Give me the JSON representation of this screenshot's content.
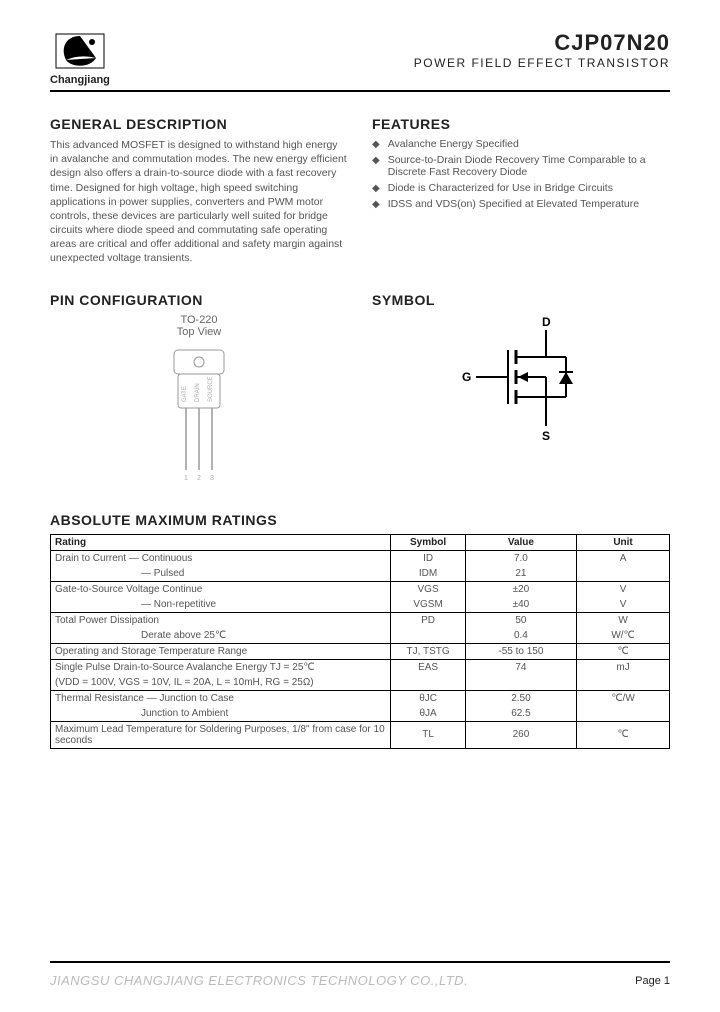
{
  "header": {
    "logo_text": "Changjiang",
    "part_number": "CJP07N20",
    "subtitle": "POWER FIELD EFFECT TRANSISTOR"
  },
  "sections": {
    "general_desc_title": "GENERAL DESCRIPTION",
    "general_desc_body": "This advanced MOSFET is designed to withstand high energy in avalanche and commutation modes. The new energy efficient design also offers a drain-to-source diode with a fast recovery time. Designed for high voltage, high speed switching applications in power supplies, converters and PWM motor controls, these devices are particularly well suited for bridge circuits where diode speed and commutating safe operating areas are critical and offer additional and safety margin against unexpected voltage transients.",
    "features_title": "FEATURES",
    "features": [
      "Avalanche Energy Specified",
      "Source-to-Drain Diode Recovery Time Comparable to a Discrete Fast Recovery Diode",
      "Diode is Characterized for Use in Bridge Circuits",
      "IDSS and VDS(on) Specified at Elevated Temperature"
    ],
    "pin_config_title": "PIN CONFIGURATION",
    "pin_package": "TO-220",
    "pin_view": "Top View",
    "pin_labels": [
      "GATE",
      "DRAIN",
      "SOURCE"
    ],
    "pin_numbers": [
      "1",
      "2",
      "3"
    ],
    "symbol_title": "SYMBOL",
    "symbol_pins": {
      "d": "D",
      "g": "G",
      "s": "S"
    },
    "ratings_title": "ABSOLUTE MAXIMUM RATINGS"
  },
  "ratings_table": {
    "headers": [
      "Rating",
      "Symbol",
      "Value",
      "Unit"
    ],
    "rows": [
      {
        "rating": "Drain to Current  —  Continuous",
        "symbol": "ID",
        "value": "7.0",
        "unit": "A",
        "sep": false
      },
      {
        "rating": "—  Pulsed",
        "symbol": "IDM",
        "value": "21",
        "unit": "",
        "sep": true,
        "indent": true
      },
      {
        "rating": "Gate-to-Source Voltage      Continue",
        "symbol": "VGS",
        "value": "±20",
        "unit": "V",
        "sep": false
      },
      {
        "rating": "—  Non-repetitive",
        "symbol": "VGSM",
        "value": "±40",
        "unit": "V",
        "sep": true,
        "indent": true
      },
      {
        "rating": "Total Power Dissipation",
        "symbol": "PD",
        "value": "50",
        "unit": "W",
        "sep": false
      },
      {
        "rating": "Derate above 25℃",
        "symbol": "",
        "value": "0.4",
        "unit": "W/℃",
        "sep": true,
        "indent": true
      },
      {
        "rating": "Operating and Storage Temperature Range",
        "symbol": "TJ, TSTG",
        "value": "-55 to 150",
        "unit": "℃",
        "sep": true
      },
      {
        "rating": "Single Pulse Drain-to-Source Avalanche Energy      TJ = 25℃",
        "symbol": "EAS",
        "value": "74",
        "unit": "mJ",
        "sep": false
      },
      {
        "rating": "(VDD = 100V, VGS = 10V, IL = 20A, L = 10mH, RG = 25Ω)",
        "symbol": "",
        "value": "",
        "unit": "",
        "sep": true
      },
      {
        "rating": "Thermal Resistance  —  Junction to Case",
        "symbol": "θJC",
        "value": "2.50",
        "unit": "℃/W",
        "sep": false
      },
      {
        "rating": "Junction to Ambient",
        "symbol": "θJA",
        "value": "62.5",
        "unit": "",
        "sep": true,
        "indent": true
      },
      {
        "rating": "Maximum Lead Temperature for Soldering Purposes, 1/8\" from case for 10 seconds",
        "symbol": "TL",
        "value": "260",
        "unit": "℃",
        "sep": true,
        "last": true
      }
    ]
  },
  "footer": {
    "company": "JIANGSU CHANGJIANG ELECTRONICS TECHNOLOGY CO.,LTD.",
    "page": "Page 1"
  },
  "colors": {
    "text": "#222222",
    "muted": "#555555",
    "footer_company": "#bbbbbb",
    "rule": "#000000"
  }
}
